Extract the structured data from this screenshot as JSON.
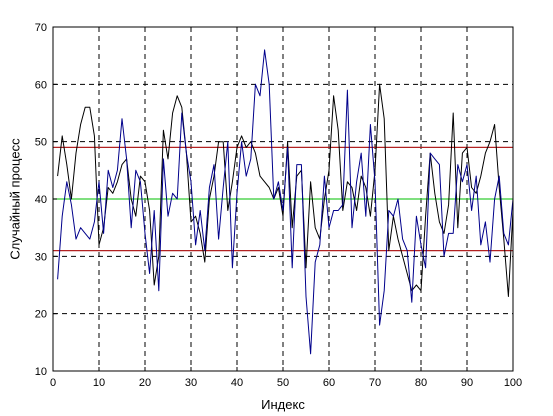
{
  "chart_data": {
    "type": "line",
    "xlabel": "Индекс",
    "ylabel": "Случайный процесс",
    "xlim": [
      0,
      100
    ],
    "ylim": [
      10,
      70
    ],
    "xticks": [
      "0",
      "10",
      "20",
      "30",
      "40",
      "50",
      "60",
      "70",
      "80",
      "90",
      "100"
    ],
    "yticks": [
      "10",
      "20",
      "30",
      "40",
      "50",
      "60",
      "70"
    ],
    "grid": true,
    "reference_lines": [
      {
        "y": 49,
        "color": "#b22222"
      },
      {
        "y": 40,
        "color": "#33cc33"
      },
      {
        "y": 31,
        "color": "#b22222"
      }
    ],
    "series": [
      {
        "color": "#000000",
        "x": [
          1,
          2,
          3,
          4,
          5,
          6,
          7,
          8,
          9,
          10,
          11,
          12,
          13,
          14,
          15,
          16,
          17,
          18,
          19,
          20,
          21,
          22,
          23,
          24,
          25,
          26,
          27,
          28,
          29,
          30,
          31,
          32,
          33,
          34,
          35,
          36,
          37,
          38,
          39,
          40,
          41,
          42,
          43,
          44,
          45,
          46,
          47,
          48,
          49,
          50,
          51,
          52,
          53,
          54,
          55,
          56,
          57,
          58,
          59,
          60,
          61,
          62,
          63,
          64,
          65,
          66,
          67,
          68,
          69,
          70,
          71,
          72,
          73,
          74,
          75,
          76,
          77,
          78,
          79,
          80,
          81,
          82,
          83,
          84,
          85,
          86,
          87,
          88,
          89,
          90,
          91,
          92,
          93,
          94,
          95,
          96,
          97,
          98,
          99,
          100
        ],
        "values": [
          44,
          51,
          46,
          40,
          48,
          53,
          56,
          56,
          51,
          32,
          35,
          42,
          41,
          43,
          46,
          47,
          40,
          37,
          44,
          43,
          38,
          25,
          30,
          52,
          47,
          55,
          58,
          56,
          48,
          36,
          37,
          34,
          29,
          40,
          44,
          50,
          50,
          38,
          43,
          49,
          51,
          49,
          50,
          48,
          44,
          43,
          42,
          40,
          42,
          37,
          50,
          35,
          44,
          45,
          28,
          43,
          35,
          33,
          40,
          45,
          58,
          52,
          38,
          43,
          42,
          38,
          44,
          42,
          37,
          45,
          60,
          54,
          31,
          37,
          33,
          30,
          27,
          24,
          25,
          24,
          37,
          48,
          41,
          36,
          34,
          39,
          55,
          35,
          48,
          49,
          42,
          41,
          44,
          48,
          50,
          53,
          42,
          33,
          23,
          38
        ]
      },
      {
        "color": "#00008b",
        "x": [
          1,
          2,
          3,
          4,
          5,
          6,
          7,
          8,
          9,
          10,
          11,
          12,
          13,
          14,
          15,
          16,
          17,
          18,
          19,
          20,
          21,
          22,
          23,
          24,
          25,
          26,
          27,
          28,
          29,
          30,
          31,
          32,
          33,
          34,
          35,
          36,
          37,
          38,
          39,
          40,
          41,
          42,
          43,
          44,
          45,
          46,
          47,
          48,
          49,
          50,
          51,
          52,
          53,
          54,
          55,
          56,
          57,
          58,
          59,
          60,
          61,
          62,
          63,
          64,
          65,
          66,
          67,
          68,
          69,
          70,
          71,
          72,
          73,
          74,
          75,
          76,
          77,
          78,
          79,
          80,
          81,
          82,
          83,
          84,
          85,
          86,
          87,
          88,
          89,
          90,
          91,
          92,
          93,
          94,
          95,
          96,
          97,
          98,
          99,
          100
        ],
        "values": [
          26,
          37,
          43,
          39,
          33,
          35,
          34,
          33,
          36,
          43,
          34,
          45,
          42,
          45,
          54,
          47,
          35,
          45,
          43,
          34,
          27,
          38,
          24,
          47,
          37,
          41,
          40,
          55,
          48,
          43,
          32,
          38,
          31,
          42,
          46,
          33,
          42,
          50,
          28,
          41,
          50,
          44,
          47,
          60,
          58,
          66,
          60,
          40,
          43,
          38,
          49,
          28,
          46,
          46,
          23,
          13,
          29,
          32,
          44,
          35,
          38,
          38,
          39,
          59,
          35,
          43,
          48,
          37,
          53,
          43,
          18,
          24,
          38,
          37,
          40,
          33,
          31,
          22,
          37,
          32,
          28,
          48,
          47,
          46,
          30,
          34,
          34,
          46,
          43,
          46,
          38,
          44,
          32,
          36,
          29,
          40,
          44,
          34,
          32,
          40
        ]
      }
    ]
  }
}
